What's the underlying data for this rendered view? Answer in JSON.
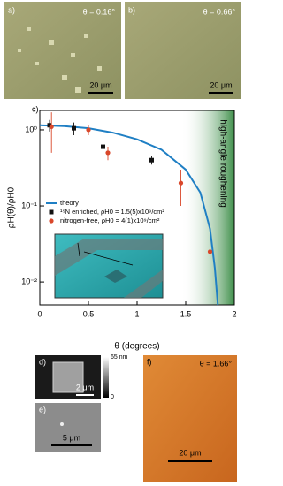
{
  "panels": {
    "a": {
      "label": "a)",
      "angle": "θ = 0.16°",
      "scale": "20 μm"
    },
    "b": {
      "label": "b)",
      "angle": "θ = 0.66°",
      "scale": "20 μm"
    },
    "d": {
      "label": "d)",
      "scale": "2 μm",
      "colorbar_max": "65 nm",
      "colorbar_min": "0"
    },
    "e": {
      "label": "e)",
      "scale": "5 μm"
    },
    "f": {
      "label": "f)",
      "angle": "θ = 1.66°",
      "scale": "20 μm"
    }
  },
  "chart_data": {
    "type": "line",
    "panel_label": "c)",
    "x_label": "θ (degrees)",
    "y_label": "ρH(θ)/ρH0",
    "annotation": "high-angle roughening",
    "xlim": [
      0,
      2
    ],
    "xticks": [
      0,
      0.5,
      1,
      1.5,
      2
    ],
    "ylim": [
      0.005,
      1.8
    ],
    "log_y": true,
    "yticks": [
      {
        "value": 1,
        "label": "10⁰"
      },
      {
        "value": 0.1,
        "label": "10⁻¹"
      },
      {
        "value": 0.01,
        "label": "10⁻²"
      }
    ],
    "series": [
      {
        "name": "theory",
        "type": "line",
        "color": "#1f7fc4",
        "x": [
          0,
          0.25,
          0.5,
          0.75,
          1,
          1.25,
          1.5,
          1.65,
          1.75,
          1.8,
          1.83
        ],
        "values": [
          1.15,
          1.12,
          1.05,
          0.92,
          0.75,
          0.55,
          0.3,
          0.15,
          0.05,
          0.015,
          0.005
        ]
      },
      {
        "name": "¹⁵N enriched, ρH0 = 1.5(5)x10⁹/cm²",
        "type": "scatter",
        "marker": "square",
        "color": "#111111",
        "x": [
          0.1,
          0.35,
          0.65,
          1.15
        ],
        "values": [
          1.15,
          1.05,
          0.6,
          0.4
        ],
        "errors": [
          0.2,
          0.2,
          0.06,
          0.05
        ]
      },
      {
        "name": "nitrogen-free, ρH0 = 4(1)x10⁹/cm²",
        "type": "scatter",
        "marker": "circle",
        "color": "#d9472a",
        "x": [
          0.12,
          0.5,
          0.7,
          1.45,
          1.75
        ],
        "values": [
          1.1,
          1.0,
          0.5,
          0.2,
          0.025
        ],
        "errors": [
          0.6,
          0.15,
          0.1,
          0.1,
          0.02
        ]
      }
    ]
  }
}
